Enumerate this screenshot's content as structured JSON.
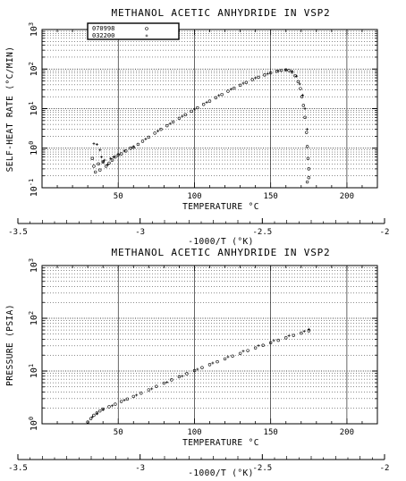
{
  "chart_data": [
    {
      "type": "scatter",
      "title": "METHANOL ACETIC ANHYDRIDE IN VSP2",
      "xlabel": "TEMPERATURE °C",
      "ylabel": "SELF-HEAT RATE (°C/MIN)",
      "secondary_xlabel": "-1000/T (°K)",
      "xlim": [
        0,
        220
      ],
      "ylim": [
        0.1,
        1000
      ],
      "yscale": "log",
      "xticks": [
        "50",
        "100",
        "150",
        "200"
      ],
      "yticks": [
        "10^-1",
        "10^0",
        "10^1",
        "10^2",
        "10^3"
      ],
      "secondary_xticks": [
        "-3.5",
        "-3",
        "-2.5",
        "-2"
      ],
      "grid": true,
      "legend": "top-left",
      "series": [
        {
          "name": "070998",
          "marker": "open-circle",
          "points": [
            [
              33,
              0.55
            ],
            [
              34,
              0.35
            ],
            [
              35,
              0.25
            ],
            [
              37,
              0.4
            ],
            [
              38,
              0.28
            ],
            [
              40,
              0.45
            ],
            [
              42,
              0.35
            ],
            [
              44,
              0.42
            ],
            [
              46,
              0.5
            ],
            [
              48,
              0.6
            ],
            [
              50,
              0.68
            ],
            [
              52,
              0.72
            ],
            [
              55,
              0.85
            ],
            [
              58,
              1.0
            ],
            [
              60,
              1.05
            ],
            [
              63,
              1.25
            ],
            [
              66,
              1.5
            ],
            [
              70,
              1.9
            ],
            [
              74,
              2.4
            ],
            [
              78,
              3.0
            ],
            [
              82,
              3.7
            ],
            [
              86,
              4.6
            ],
            [
              90,
              5.7
            ],
            [
              94,
              7.0
            ],
            [
              98,
              8.6
            ],
            [
              102,
              10.5
            ],
            [
              106,
              12.8
            ],
            [
              110,
              15.5
            ],
            [
              114,
              18.8
            ],
            [
              118,
              22.8
            ],
            [
              122,
              27.5
            ],
            [
              126,
              33
            ],
            [
              130,
              39
            ],
            [
              134,
              46
            ],
            [
              138,
              54
            ],
            [
              142,
              62
            ],
            [
              146,
              71
            ],
            [
              150,
              80
            ],
            [
              154,
              88
            ],
            [
              157,
              93
            ],
            [
              160,
              95
            ],
            [
              162,
              92
            ],
            [
              164,
              84
            ],
            [
              166,
              68
            ],
            [
              168,
              48
            ],
            [
              169.5,
              32
            ],
            [
              170.5,
              20
            ],
            [
              171.5,
              12
            ],
            [
              172.5,
              6
            ],
            [
              173.5,
              2.5
            ],
            [
              174,
              1.1
            ],
            [
              174.5,
              0.55
            ],
            [
              175,
              0.3
            ],
            [
              175,
              0.18
            ],
            [
              174,
              0.14
            ]
          ]
        },
        {
          "name": "032200",
          "marker": "plus",
          "points": [
            [
              34,
              1.3
            ],
            [
              36,
              1.25
            ],
            [
              38,
              0.9
            ],
            [
              39,
              0.6
            ],
            [
              40,
              0.45
            ],
            [
              41,
              0.5
            ],
            [
              43,
              0.38
            ],
            [
              45,
              0.55
            ],
            [
              47,
              0.6
            ],
            [
              50,
              0.7
            ],
            [
              54,
              0.85
            ],
            [
              60,
              1.1
            ],
            [
              68,
              1.7
            ],
            [
              76,
              2.7
            ],
            [
              84,
              4.2
            ],
            [
              92,
              6.4
            ],
            [
              100,
              9.7
            ],
            [
              108,
              14.5
            ],
            [
              116,
              21.5
            ],
            [
              124,
              31
            ],
            [
              132,
              44
            ],
            [
              140,
              60
            ],
            [
              148,
              77
            ],
            [
              155,
              90
            ],
            [
              160,
              96
            ],
            [
              164,
              88
            ],
            [
              167,
              66
            ],
            [
              169,
              42
            ],
            [
              171,
              22
            ],
            [
              172.5,
              10
            ],
            [
              174,
              3
            ]
          ]
        }
      ]
    },
    {
      "type": "scatter",
      "title": "METHANOL ACETIC ANHYDRIDE IN VSP2",
      "xlabel": "TEMPERATURE °C",
      "ylabel": "PRESSURE (PSIA)",
      "secondary_xlabel": "-1000/T (°K)",
      "xlim": [
        0,
        220
      ],
      "ylim": [
        1,
        1000
      ],
      "yscale": "log",
      "xticks": [
        "50",
        "100",
        "150",
        "200"
      ],
      "yticks": [
        "10^0",
        "10^1",
        "10^2",
        "10^3"
      ],
      "secondary_xticks": [
        "-3.5",
        "-3",
        "-2.5",
        "-2"
      ],
      "grid": true,
      "series": [
        {
          "name": "070998",
          "marker": "open-circle",
          "points": [
            [
              30,
              1.08
            ],
            [
              32,
              1.25
            ],
            [
              34,
              1.45
            ],
            [
              36,
              1.6
            ],
            [
              38,
              1.75
            ],
            [
              40,
              1.9
            ],
            [
              44,
              2.1
            ],
            [
              48,
              2.35
            ],
            [
              52,
              2.65
            ],
            [
              56,
              2.95
            ],
            [
              60,
              3.3
            ],
            [
              65,
              3.8
            ],
            [
              70,
              4.4
            ],
            [
              75,
              5.1
            ],
            [
              80,
              5.9
            ],
            [
              85,
              6.8
            ],
            [
              90,
              7.8
            ],
            [
              95,
              8.9
            ],
            [
              100,
              10.2
            ],
            [
              105,
              11.6
            ],
            [
              110,
              13.2
            ],
            [
              115,
              15.0
            ],
            [
              120,
              17.0
            ],
            [
              125,
              19.2
            ],
            [
              130,
              21.6
            ],
            [
              135,
              24.4
            ],
            [
              140,
              27.4
            ],
            [
              145,
              30.7
            ],
            [
              150,
              34.3
            ],
            [
              155,
              38.3
            ],
            [
              160,
              42.6
            ],
            [
              165,
              47.3
            ],
            [
              170,
              52.3
            ],
            [
              175,
              57.8
            ]
          ]
        },
        {
          "name": "032200",
          "marker": "plus",
          "points": [
            [
              33,
              1.35
            ],
            [
              36,
              1.55
            ],
            [
              40,
              1.85
            ],
            [
              46,
              2.2
            ],
            [
              54,
              2.8
            ],
            [
              62,
              3.5
            ],
            [
              72,
              4.6
            ],
            [
              82,
              6.1
            ],
            [
              92,
              8.0
            ],
            [
              102,
              10.8
            ],
            [
              112,
              14.2
            ],
            [
              122,
              18.6
            ],
            [
              132,
              23.8
            ],
            [
              142,
              30.2
            ],
            [
              152,
              37.8
            ],
            [
              162,
              46.5
            ],
            [
              172,
              56.8
            ],
            [
              175,
              62
            ]
          ]
        }
      ]
    }
  ]
}
